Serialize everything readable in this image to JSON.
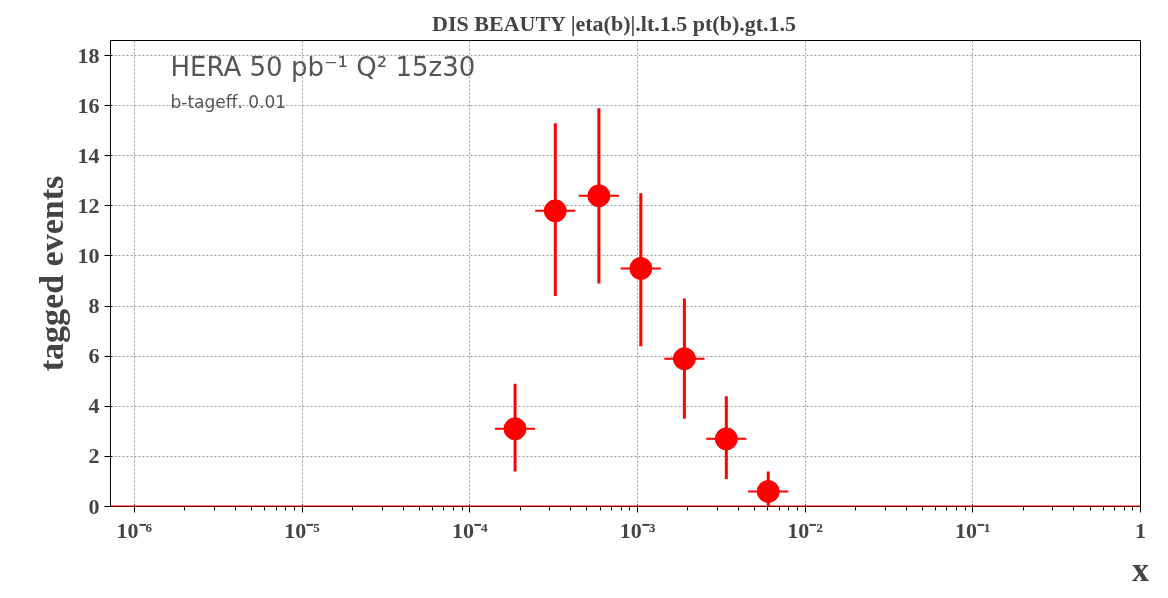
{
  "chart_data": {
    "type": "scatter",
    "title": "DIS  BEAUTY |eta(b)|.lt.1.5    pt(b).gt.1.5",
    "xlabel": "x",
    "ylabel": "tagged events",
    "log": "x",
    "grid": true,
    "marker": "circle",
    "xlim": [
      7.2e-07,
      1
    ],
    "ylim": [
      0,
      18.6
    ],
    "xticks": [
      {
        "value": 1e-06,
        "label": "10⁻⁶"
      },
      {
        "value": 1e-05,
        "label": "10⁻⁵"
      },
      {
        "value": 0.0001,
        "label": "10⁻⁴"
      },
      {
        "value": 0.001,
        "label": "10⁻³"
      },
      {
        "value": 0.01,
        "label": "10⁻²"
      },
      {
        "value": 0.1,
        "label": "10⁻¹"
      },
      1
    ],
    "yticks": [
      0,
      2,
      4,
      6,
      8,
      10,
      12,
      14,
      16,
      18
    ],
    "annotations": [
      "HERA  50 pb⁻¹     Q² 15z30",
      "b-tageff. 0.01"
    ],
    "ref_lines": [
      {
        "axis": "y",
        "value": 0,
        "color": "#ff0000"
      }
    ],
    "series": [
      {
        "color": "#ff0000",
        "x": [
          0.0001862,
          0.0003236,
          0.0005888,
          0.001047,
          0.001905,
          0.003388,
          0.006026
        ],
        "values": [
          3.1,
          11.8,
          12.4,
          9.5,
          5.9,
          2.7,
          0.6
        ],
        "errors": [
          [
            1.4,
            4.9
          ],
          [
            8.4,
            15.3
          ],
          [
            8.9,
            15.9
          ],
          [
            6.4,
            12.5
          ],
          [
            3.5,
            8.3
          ],
          [
            1.1,
            4.4
          ],
          [
            0,
            1.4
          ]
        ],
        "xerrors": [
          [
            0.0001413,
            0.0002454
          ],
          [
            0.0002455,
            0.0004265
          ],
          [
            0.0004467,
            0.000776
          ],
          [
            0.000794,
            0.00138
          ],
          [
            0.001445,
            0.002511
          ],
          [
            0.00257,
            0.004466
          ],
          [
            0.004571,
            0.00794
          ]
        ]
      }
    ]
  }
}
